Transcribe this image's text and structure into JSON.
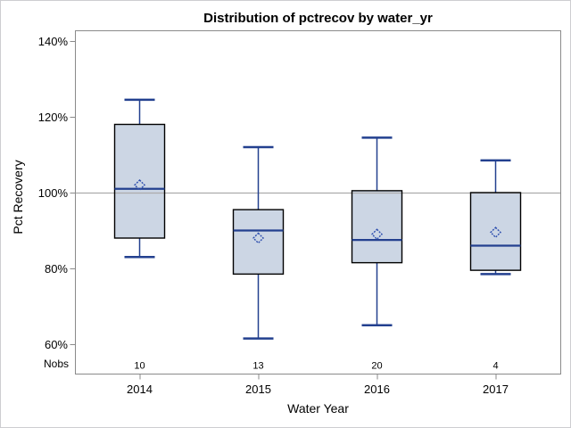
{
  "colors": {
    "background": "#ffffff",
    "outer_border": "#cdcdd1",
    "plot_border": "#8a8a8a",
    "tick_color": "#8a8a8a",
    "text_color": "#000000",
    "reference_line": "#ababab",
    "box_fill": "#ccd6e4",
    "box_border": "#000000",
    "whisker_line": "#23408f",
    "mean_diamond": "#2e4fae"
  },
  "chart_data": {
    "type": "box",
    "title": "Distribution of pctrecov by water_yr",
    "xlabel": "Water Year",
    "ylabel": "Pct Recovery",
    "nobs_label": "Nobs",
    "grid": false,
    "legend": false,
    "reference_line_y": 100,
    "y_ticks": [
      140,
      120,
      100,
      80,
      60
    ],
    "y_tick_suffix": "%",
    "ylim": [
      52,
      143
    ],
    "categories": [
      "2014",
      "2015",
      "2016",
      "2017"
    ],
    "nobs": [
      10,
      13,
      20,
      4
    ],
    "series": [
      {
        "category": "2014",
        "n": 10,
        "whisker_low": 83,
        "q1": 88,
        "median": 101,
        "q3": 118,
        "whisker_high": 124.5,
        "mean": 102
      },
      {
        "category": "2015",
        "n": 13,
        "whisker_low": 61.5,
        "q1": 78.5,
        "median": 90,
        "q3": 95.5,
        "whisker_high": 112,
        "mean": 88
      },
      {
        "category": "2016",
        "n": 20,
        "whisker_low": 65,
        "q1": 81.5,
        "median": 87.5,
        "q3": 100.5,
        "whisker_high": 114.5,
        "mean": 89
      },
      {
        "category": "2017",
        "n": 4,
        "whisker_low": 78.5,
        "q1": 79.5,
        "median": 86,
        "q3": 100,
        "whisker_high": 108.5,
        "mean": 89.5
      }
    ]
  }
}
